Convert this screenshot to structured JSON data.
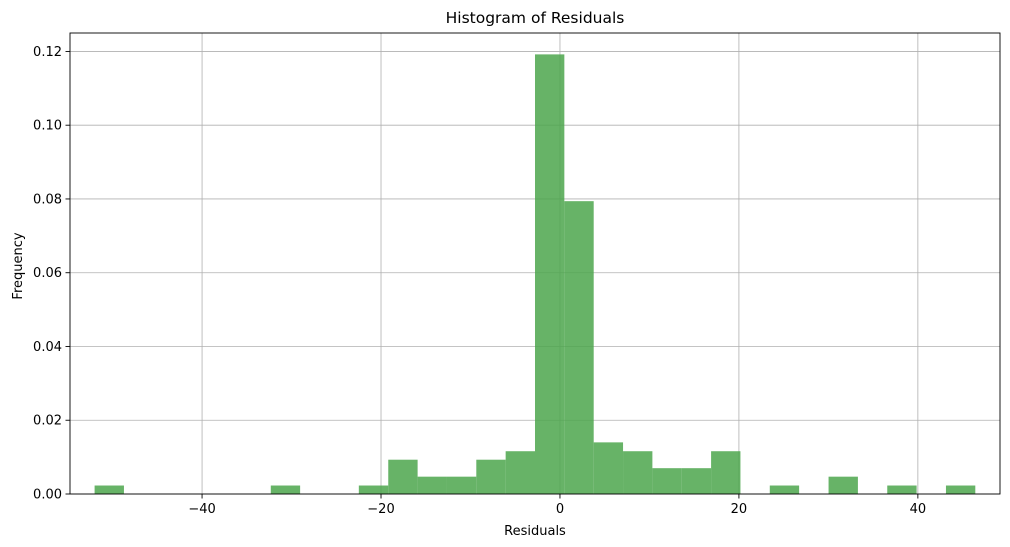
{
  "chart_data": {
    "type": "bar",
    "title": "Histogram of Residuals",
    "xlabel": "Residuals",
    "ylabel": "Frequency",
    "xlim": [
      -54.76,
      49.18
    ],
    "ylim": [
      0,
      0.125
    ],
    "grid": true,
    "bar_color": "#4ca64c",
    "bar_opacity": 0.85,
    "grid_color": "#b0b0b0",
    "x_ticks": [
      -40,
      -20,
      0,
      20,
      40
    ],
    "x_tick_labels": [
      "−40",
      "−20",
      "0",
      "20",
      "40"
    ],
    "y_ticks": [
      0.0,
      0.02,
      0.04,
      0.06,
      0.08,
      0.1,
      0.12
    ],
    "y_tick_labels": [
      "0.00",
      "0.02",
      "0.04",
      "0.06",
      "0.08",
      "0.10",
      "0.12"
    ],
    "bins": [
      {
        "x0": -52.01,
        "x1": -48.73,
        "value": 0.0023
      },
      {
        "x0": -32.32,
        "x1": -29.04,
        "value": 0.0023
      },
      {
        "x0": -22.48,
        "x1": -19.19,
        "value": 0.0023
      },
      {
        "x0": -19.19,
        "x1": -15.91,
        "value": 0.0093
      },
      {
        "x0": -15.91,
        "x1": -12.63,
        "value": 0.0047
      },
      {
        "x0": -12.63,
        "x1": -9.35,
        "value": 0.0047
      },
      {
        "x0": -9.35,
        "x1": -6.07,
        "value": 0.0093
      },
      {
        "x0": -6.07,
        "x1": -2.79,
        "value": 0.0116
      },
      {
        "x0": -2.79,
        "x1": 0.49,
        "value": 0.1192
      },
      {
        "x0": 0.49,
        "x1": 3.77,
        "value": 0.0794
      },
      {
        "x0": 3.77,
        "x1": 7.05,
        "value": 0.014
      },
      {
        "x0": 7.05,
        "x1": 10.33,
        "value": 0.0116
      },
      {
        "x0": 10.33,
        "x1": 13.61,
        "value": 0.007
      },
      {
        "x0": 13.61,
        "x1": 16.89,
        "value": 0.007
      },
      {
        "x0": 16.89,
        "x1": 20.17,
        "value": 0.0116
      },
      {
        "x0": 23.45,
        "x1": 26.73,
        "value": 0.0023
      },
      {
        "x0": 30.02,
        "x1": 33.3,
        "value": 0.0047
      },
      {
        "x0": 36.58,
        "x1": 39.86,
        "value": 0.0023
      },
      {
        "x0": 43.14,
        "x1": 46.42,
        "value": 0.0023
      }
    ]
  }
}
